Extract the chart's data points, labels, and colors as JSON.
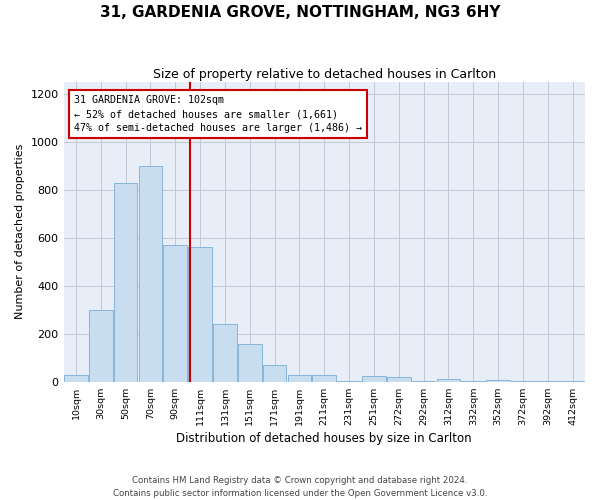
{
  "title": "31, GARDENIA GROVE, NOTTINGHAM, NG3 6HY",
  "subtitle": "Size of property relative to detached houses in Carlton",
  "xlabel": "Distribution of detached houses by size in Carlton",
  "ylabel": "Number of detached properties",
  "footer_line1": "Contains HM Land Registry data © Crown copyright and database right 2024.",
  "footer_line2": "Contains public sector information licensed under the Open Government Licence v3.0.",
  "annotation_line1": "31 GARDENIA GROVE: 102sqm",
  "annotation_line2": "← 52% of detached houses are smaller (1,661)",
  "annotation_line3": "47% of semi-detached houses are larger (1,486) →",
  "bin_labels": [
    "10sqm",
    "30sqm",
    "50sqm",
    "70sqm",
    "90sqm",
    "111sqm",
    "131sqm",
    "151sqm",
    "171sqm",
    "191sqm",
    "211sqm",
    "231sqm",
    "251sqm",
    "272sqm",
    "292sqm",
    "312sqm",
    "332sqm",
    "352sqm",
    "372sqm",
    "392sqm",
    "412sqm"
  ],
  "bin_centers": [
    0,
    1,
    2,
    3,
    4,
    5,
    6,
    7,
    8,
    9,
    10,
    11,
    12,
    13,
    14,
    15,
    16,
    17,
    18,
    19,
    20
  ],
  "counts": [
    28,
    298,
    828,
    900,
    570,
    560,
    240,
    155,
    70,
    28,
    28,
    2,
    22,
    18,
    2,
    12,
    2,
    8,
    2,
    2,
    2
  ],
  "bar_facecolor": "#c9ddf0",
  "bar_edgecolor": "#7aadd4",
  "vline_bin": 4.6,
  "vline_color": "#cc0000",
  "annotation_edgecolor": "#cc0000",
  "bg_color": "#ffffff",
  "plot_bg_color": "#e8eef7",
  "grid_color": "#c0c8d8",
  "ylim": [
    0,
    1250
  ],
  "yticks": [
    0,
    200,
    400,
    600,
    800,
    1000,
    1200
  ],
  "title_fontsize": 11,
  "subtitle_fontsize": 9,
  "ylabel_fontsize": 8,
  "xlabel_fontsize": 8.5
}
